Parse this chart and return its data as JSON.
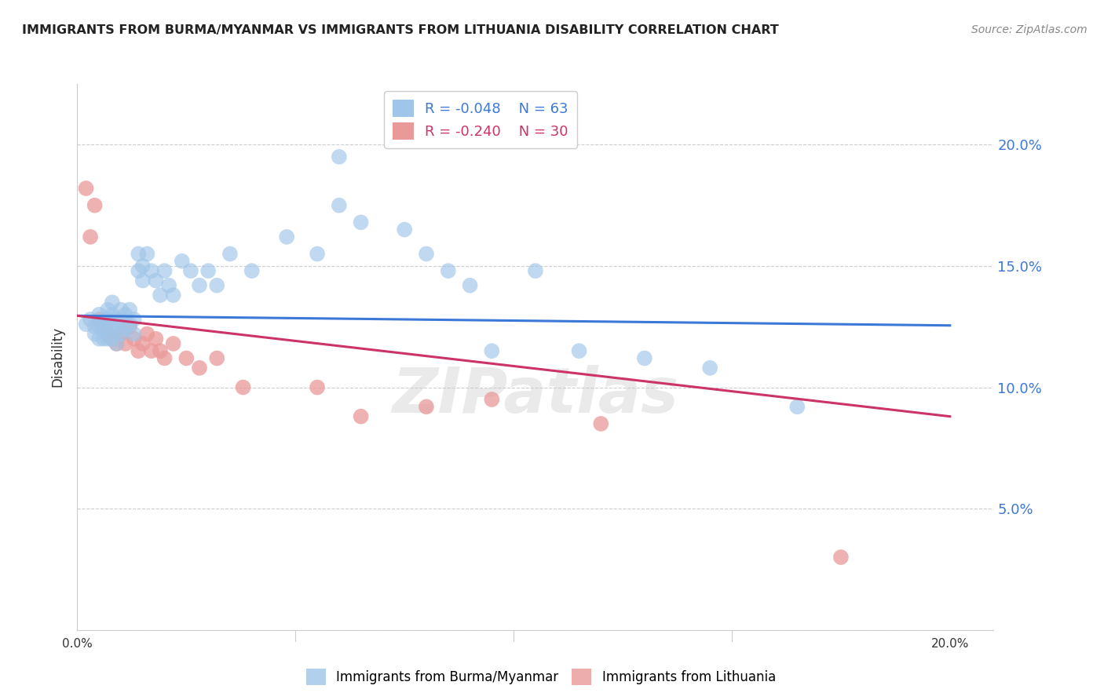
{
  "title": "IMMIGRANTS FROM BURMA/MYANMAR VS IMMIGRANTS FROM LITHUANIA DISABILITY CORRELATION CHART",
  "source": "Source: ZipAtlas.com",
  "ylabel": "Disability",
  "y_ticks": [
    0.0,
    0.05,
    0.1,
    0.15,
    0.2
  ],
  "y_tick_labels": [
    "",
    "5.0%",
    "10.0%",
    "15.0%",
    "20.0%"
  ],
  "x_ticks": [
    0.0,
    0.05,
    0.1,
    0.15,
    0.2
  ],
  "xlim": [
    0.0,
    0.21
  ],
  "ylim": [
    0.0,
    0.225
  ],
  "blue_color": "#9fc5e8",
  "pink_color": "#ea9999",
  "blue_line_color": "#3c78d8",
  "pink_line_color": "#cc3366",
  "legend_blue_R": "R = -0.048",
  "legend_blue_N": "N = 63",
  "legend_pink_R": "R = -0.240",
  "legend_pink_N": "N = 30",
  "watermark": "ZIPatlas",
  "blue_scatter_x": [
    0.002,
    0.003,
    0.004,
    0.004,
    0.005,
    0.005,
    0.005,
    0.006,
    0.006,
    0.006,
    0.007,
    0.007,
    0.007,
    0.007,
    0.008,
    0.008,
    0.008,
    0.008,
    0.009,
    0.009,
    0.009,
    0.01,
    0.01,
    0.01,
    0.011,
    0.011,
    0.012,
    0.012,
    0.013,
    0.013,
    0.014,
    0.014,
    0.015,
    0.015,
    0.016,
    0.017,
    0.018,
    0.019,
    0.02,
    0.021,
    0.022,
    0.024,
    0.026,
    0.028,
    0.03,
    0.032,
    0.035,
    0.04,
    0.048,
    0.055,
    0.06,
    0.065,
    0.075,
    0.085,
    0.09,
    0.095,
    0.105,
    0.115,
    0.13,
    0.145,
    0.06,
    0.08,
    0.165
  ],
  "blue_scatter_y": [
    0.126,
    0.128,
    0.125,
    0.122,
    0.13,
    0.125,
    0.12,
    0.128,
    0.124,
    0.12,
    0.132,
    0.128,
    0.125,
    0.12,
    0.135,
    0.13,
    0.125,
    0.12,
    0.128,
    0.124,
    0.118,
    0.132,
    0.128,
    0.122,
    0.13,
    0.124,
    0.132,
    0.126,
    0.128,
    0.122,
    0.155,
    0.148,
    0.15,
    0.144,
    0.155,
    0.148,
    0.144,
    0.138,
    0.148,
    0.142,
    0.138,
    0.152,
    0.148,
    0.142,
    0.148,
    0.142,
    0.155,
    0.148,
    0.162,
    0.155,
    0.175,
    0.168,
    0.165,
    0.148,
    0.142,
    0.115,
    0.148,
    0.115,
    0.112,
    0.108,
    0.195,
    0.155,
    0.092
  ],
  "pink_scatter_x": [
    0.002,
    0.003,
    0.004,
    0.005,
    0.006,
    0.007,
    0.008,
    0.009,
    0.01,
    0.011,
    0.012,
    0.013,
    0.014,
    0.015,
    0.016,
    0.017,
    0.018,
    0.019,
    0.02,
    0.022,
    0.025,
    0.028,
    0.032,
    0.038,
    0.055,
    0.065,
    0.08,
    0.095,
    0.12,
    0.175
  ],
  "pink_scatter_y": [
    0.182,
    0.162,
    0.175,
    0.128,
    0.125,
    0.122,
    0.12,
    0.118,
    0.122,
    0.118,
    0.125,
    0.12,
    0.115,
    0.118,
    0.122,
    0.115,
    0.12,
    0.115,
    0.112,
    0.118,
    0.112,
    0.108,
    0.112,
    0.1,
    0.1,
    0.088,
    0.092,
    0.095,
    0.085,
    0.03
  ],
  "blue_line_x": [
    0.0,
    0.2
  ],
  "blue_line_y": [
    0.1295,
    0.1255
  ],
  "pink_line_x": [
    0.0,
    0.2
  ],
  "pink_line_y": [
    0.1295,
    0.088
  ]
}
